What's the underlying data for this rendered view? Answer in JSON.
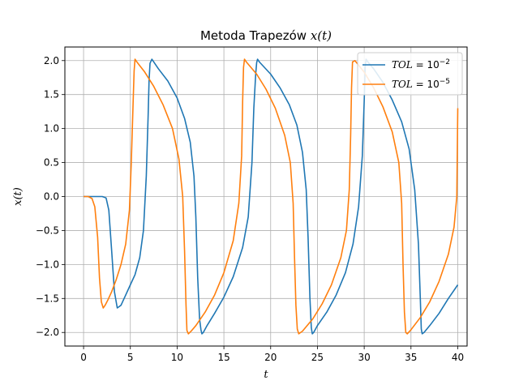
{
  "chart_data": {
    "type": "line",
    "title": "Metoda Trapezów x(t)",
    "title_parts": {
      "plain": "Metoda Trapezów ",
      "math": "x(t)"
    },
    "xlabel": "t",
    "ylabel": "x(t)",
    "xlim": [
      -2,
      41
    ],
    "ylim": [
      -2.2,
      2.2
    ],
    "xticks": [
      0,
      5,
      10,
      15,
      20,
      25,
      30,
      35,
      40
    ],
    "xtick_labels": [
      "0",
      "5",
      "10",
      "15",
      "20",
      "25",
      "30",
      "35",
      "40"
    ],
    "yticks": [
      -2.0,
      -1.5,
      -1.0,
      -0.5,
      0.0,
      0.5,
      1.0,
      1.5,
      2.0
    ],
    "ytick_labels": [
      "−2.0",
      "−1.5",
      "−1.0",
      "−0.5",
      "0.0",
      "0.5",
      "1.0",
      "1.5",
      "2.0"
    ],
    "grid": true,
    "legend_position": "top-right",
    "series": [
      {
        "name": "TOL = 10^-2",
        "label_main": "TOL",
        "label_eq": " = 10",
        "label_exp": "−2",
        "color": "#1f77b4",
        "x": [
          0,
          1,
          2,
          2.4,
          2.7,
          3.0,
          3.3,
          3.6,
          4.0,
          4.5,
          5,
          5.5,
          6,
          6.4,
          6.7,
          6.9,
          7.0,
          7.1,
          7.3,
          8,
          9,
          10,
          10.8,
          11.4,
          11.8,
          12.0,
          12.2,
          12.4,
          12.55,
          12.65,
          12.8,
          13.2,
          14,
          15,
          16,
          17,
          17.6,
          18.0,
          18.2,
          18.4,
          18.5,
          18.6,
          18.8,
          20,
          21,
          22,
          22.8,
          23.4,
          23.8,
          24.0,
          24.2,
          24.35,
          24.45,
          24.6,
          25,
          26,
          27,
          28,
          28.8,
          29.4,
          29.8,
          30.0,
          30.1,
          30.2,
          30.4,
          31,
          32,
          33,
          34,
          34.8,
          35.4,
          35.8,
          36.0,
          36.1,
          36.2,
          36.4,
          37,
          38,
          39,
          40
        ],
        "y": [
          0.0,
          0.0,
          0.0,
          -0.02,
          -0.2,
          -0.8,
          -1.4,
          -1.64,
          -1.6,
          -1.45,
          -1.3,
          -1.15,
          -0.9,
          -0.5,
          0.3,
          1.2,
          1.7,
          1.96,
          2.02,
          1.88,
          1.7,
          1.45,
          1.15,
          0.8,
          0.3,
          -0.3,
          -1.2,
          -1.8,
          -1.96,
          -2.02,
          -2.0,
          -1.9,
          -1.72,
          -1.48,
          -1.18,
          -0.75,
          -0.3,
          0.5,
          1.3,
          1.8,
          1.97,
          2.02,
          1.98,
          1.8,
          1.6,
          1.35,
          1.05,
          0.65,
          0.1,
          -0.6,
          -1.5,
          -1.93,
          -2.02,
          -2.0,
          -1.9,
          -1.7,
          -1.45,
          -1.12,
          -0.7,
          -0.15,
          0.6,
          1.4,
          1.9,
          2.02,
          1.98,
          1.88,
          1.68,
          1.42,
          1.1,
          0.7,
          0.1,
          -0.7,
          -1.5,
          -1.95,
          -2.02,
          -2.0,
          -1.9,
          -1.72,
          -1.5,
          -1.3
        ]
      },
      {
        "name": "TOL = 10^-5",
        "label_main": "TOL",
        "label_eq": " = 10",
        "label_exp": "−5",
        "color": "#ff7f0e",
        "x": [
          0,
          0.5,
          0.9,
          1.2,
          1.5,
          1.7,
          1.9,
          2.1,
          2.3,
          2.6,
          3,
          3.5,
          4,
          4.5,
          4.9,
          5.1,
          5.3,
          5.4,
          5.5,
          5.7,
          6.5,
          7.5,
          8.5,
          9.5,
          10.2,
          10.6,
          10.8,
          10.95,
          11.05,
          11.2,
          11.5,
          12,
          13,
          14,
          15,
          16,
          16.6,
          16.9,
          17.0,
          17.1,
          17.2,
          17.4,
          18.5,
          19.5,
          20.5,
          21.5,
          22.1,
          22.4,
          22.55,
          22.7,
          22.85,
          23.0,
          23.4,
          24.5,
          25.5,
          26.5,
          27.5,
          28.1,
          28.4,
          28.55,
          28.65,
          28.75,
          29,
          30,
          31,
          32,
          33,
          33.7,
          34.0,
          34.15,
          34.3,
          34.45,
          34.6,
          35,
          36,
          37,
          38,
          39,
          39.6,
          39.9,
          40
        ],
        "y": [
          0.0,
          0.0,
          -0.03,
          -0.15,
          -0.6,
          -1.2,
          -1.55,
          -1.64,
          -1.6,
          -1.52,
          -1.4,
          -1.22,
          -1.0,
          -0.7,
          -0.2,
          0.5,
          1.4,
          1.85,
          2.02,
          1.98,
          1.84,
          1.62,
          1.35,
          1.0,
          0.55,
          0.0,
          -0.8,
          -1.6,
          -1.97,
          -2.02,
          -1.98,
          -1.9,
          -1.7,
          -1.45,
          -1.12,
          -0.65,
          -0.1,
          0.6,
          1.4,
          1.9,
          2.02,
          1.98,
          1.8,
          1.58,
          1.3,
          0.9,
          0.5,
          -0.1,
          -0.9,
          -1.6,
          -1.95,
          -2.02,
          -1.98,
          -1.8,
          -1.58,
          -1.3,
          -0.9,
          -0.5,
          0.1,
          0.9,
          1.6,
          1.98,
          2.0,
          1.83,
          1.6,
          1.32,
          0.95,
          0.5,
          -0.1,
          -1.0,
          -1.7,
          -2.0,
          -2.02,
          -1.96,
          -1.78,
          -1.55,
          -1.25,
          -0.85,
          -0.45,
          0.0,
          1.3
        ]
      }
    ]
  }
}
